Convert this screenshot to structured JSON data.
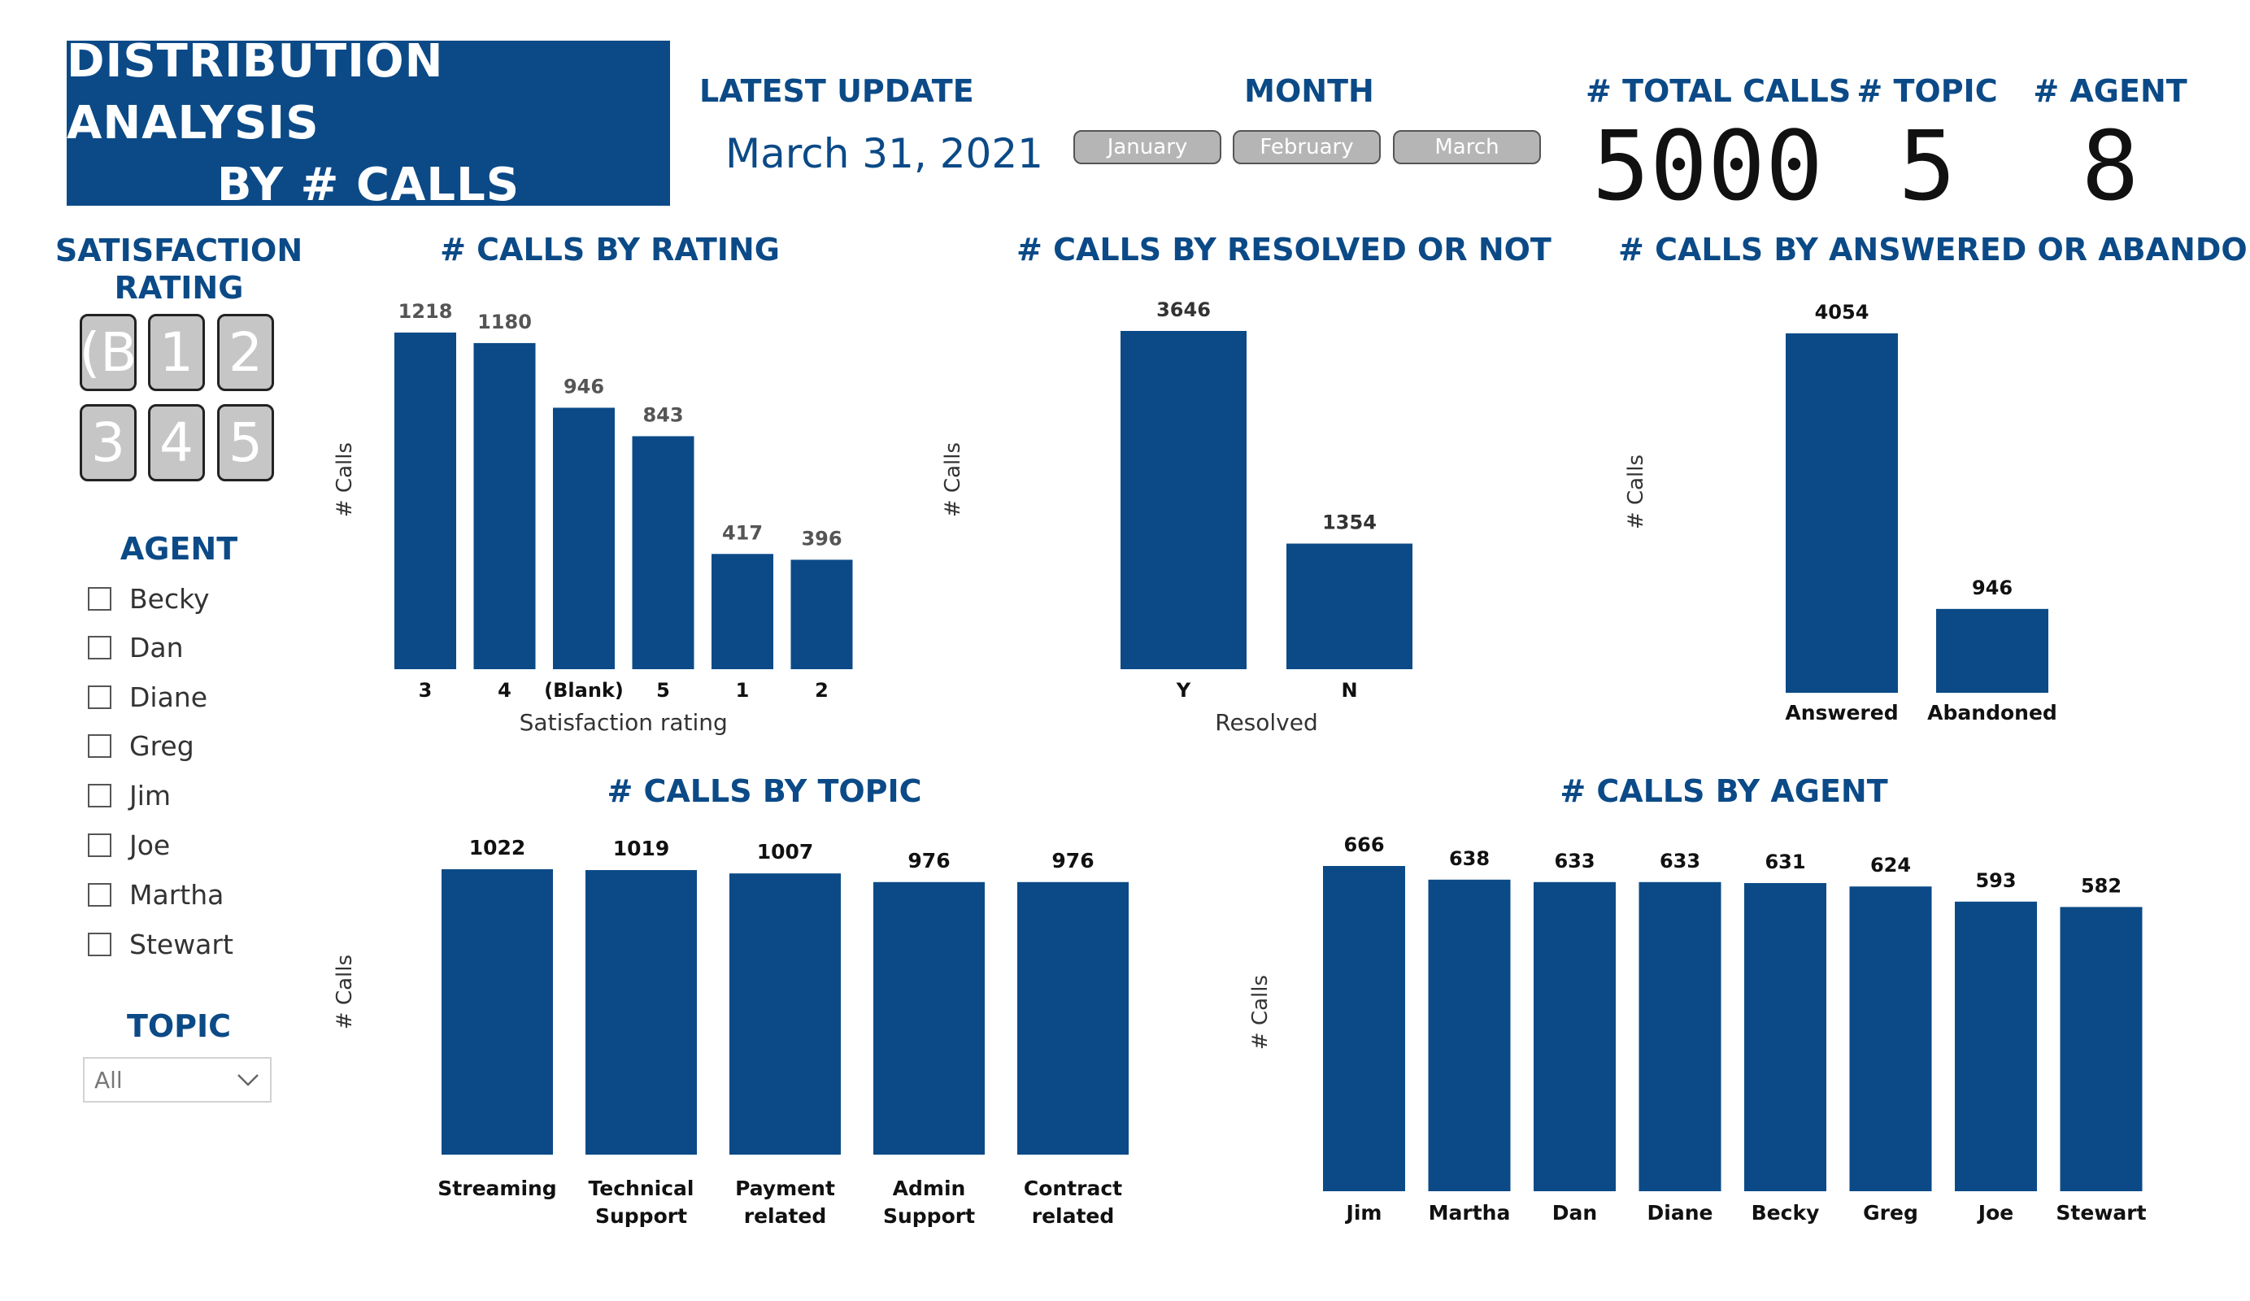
{
  "header": {
    "title_line1": "DISTRIBUTION ANALYSIS",
    "title_line2": "BY # CALLS",
    "latest_update_label": "LATEST UPDATE",
    "latest_update_value": "March 31, 2021",
    "month_label": "MONTH",
    "months": [
      "January",
      "February",
      "March"
    ]
  },
  "kpis": {
    "total_calls_label": "# TOTAL CALLS",
    "total_calls_value": "5000",
    "topic_label": "# TOPIC",
    "topic_value": "5",
    "agent_label": "# AGENT",
    "agent_value": "8"
  },
  "filters": {
    "satisfaction_label_line1": "SATISFACTION",
    "satisfaction_label_line2": "RATING",
    "rating_tiles": [
      "(B",
      "1",
      "2",
      "3",
      "4",
      "5"
    ],
    "agent_label": "AGENT",
    "agents": [
      "Becky",
      "Dan",
      "Diane",
      "Greg",
      "Jim",
      "Joe",
      "Martha",
      "Stewart"
    ],
    "topic_label": "TOPIC",
    "topic_value": "All"
  },
  "colors": {
    "bar": "#0b4a87",
    "text_dark": "#111111",
    "value_label": "#555555"
  },
  "chart_data": [
    {
      "id": "rating",
      "type": "bar",
      "title": "# CALLS BY RATING",
      "xlabel": "Satisfaction rating",
      "ylabel": "# Calls",
      "categories": [
        "3",
        "4",
        "(Blank)",
        "5",
        "1",
        "2"
      ],
      "values": [
        1218,
        1180,
        946,
        843,
        417,
        396
      ],
      "ylim": [
        0,
        1218
      ],
      "grid": false
    },
    {
      "id": "resolved",
      "type": "bar",
      "title": "# CALLS BY RESOLVED OR NOT",
      "xlabel": "Resolved",
      "ylabel": "# Calls",
      "categories": [
        "Y",
        "N"
      ],
      "values": [
        3646,
        1354
      ],
      "ylim": [
        0,
        3646
      ],
      "grid": false
    },
    {
      "id": "answered",
      "type": "bar",
      "title": "# CALLS BY ANSWERED OR ABANDONED",
      "xlabel": "",
      "ylabel": "# Calls",
      "categories": [
        "Answered",
        "Abandoned"
      ],
      "values": [
        4054,
        946
      ],
      "ylim": [
        0,
        4054
      ],
      "grid": false
    },
    {
      "id": "topic",
      "type": "bar",
      "title": "# CALLS BY TOPIC",
      "xlabel": "",
      "ylabel": "# Calls",
      "categories": [
        "Streaming",
        "Technical Support",
        "Payment related",
        "Admin Support",
        "Contract related"
      ],
      "values": [
        1022,
        1019,
        1007,
        976,
        976
      ],
      "ylim": [
        0,
        1022
      ],
      "grid": false
    },
    {
      "id": "agent",
      "type": "bar",
      "title": "# CALLS BY AGENT",
      "xlabel": "",
      "ylabel": "# Calls",
      "categories": [
        "Jim",
        "Martha",
        "Dan",
        "Diane",
        "Becky",
        "Greg",
        "Joe",
        "Stewart"
      ],
      "values": [
        666,
        638,
        633,
        633,
        631,
        624,
        593,
        582
      ],
      "ylim": [
        0,
        666
      ],
      "grid": false
    }
  ]
}
